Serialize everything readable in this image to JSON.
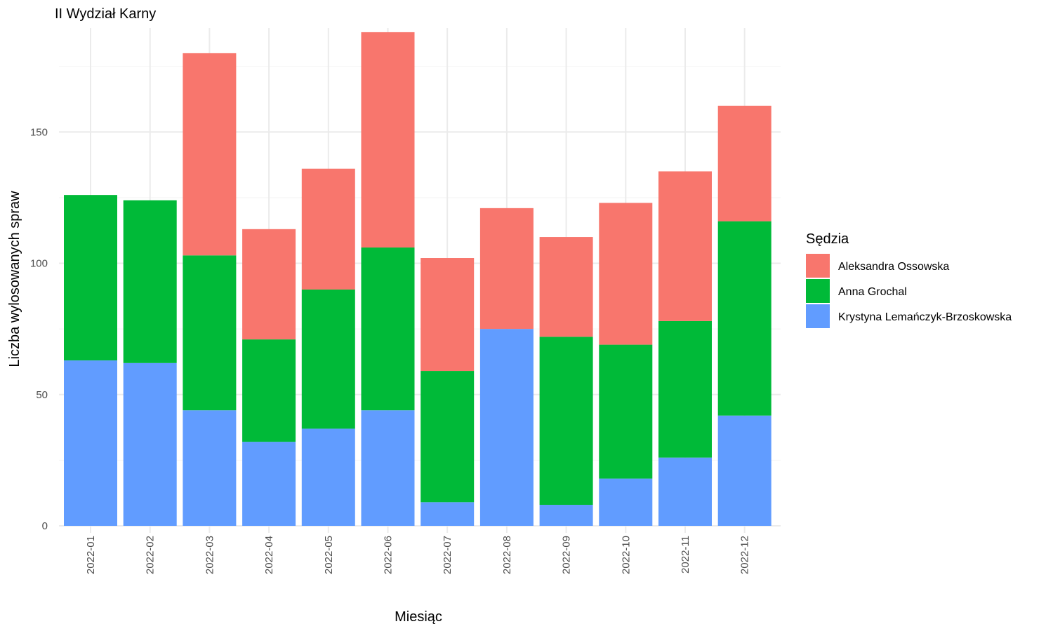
{
  "chart_data": {
    "type": "bar",
    "stacked": true,
    "title": "II Wydział Karny",
    "xlabel": "Miesiąc",
    "ylabel": "Liczba wylosowanych spraw",
    "categories": [
      "2022-01",
      "2022-02",
      "2022-03",
      "2022-04",
      "2022-05",
      "2022-06",
      "2022-07",
      "2022-08",
      "2022-09",
      "2022-10",
      "2022-11",
      "2022-12"
    ],
    "ylim": [
      0,
      188
    ],
    "yticks": [
      0,
      50,
      100,
      150
    ],
    "grid": true,
    "legend": {
      "title": "Sędzia",
      "position": "right"
    },
    "series": [
      {
        "name": "Krystyna Lemańczyk-Brzoskowska",
        "color": "#619CFF",
        "values": [
          63,
          62,
          44,
          32,
          37,
          44,
          9,
          75,
          8,
          18,
          26,
          42
        ]
      },
      {
        "name": "Anna Grochal",
        "color": "#00BA38",
        "values": [
          63,
          62,
          59,
          39,
          53,
          62,
          50,
          0,
          64,
          51,
          52,
          74
        ]
      },
      {
        "name": "Aleksandra Ossowska",
        "color": "#F8766D",
        "values": [
          0,
          0,
          77,
          42,
          46,
          82,
          43,
          46,
          38,
          54,
          57,
          44
        ]
      }
    ],
    "legend_order": [
      "Aleksandra Ossowska",
      "Anna Grochal",
      "Krystyna Lemańczyk-Brzoskowska"
    ]
  }
}
